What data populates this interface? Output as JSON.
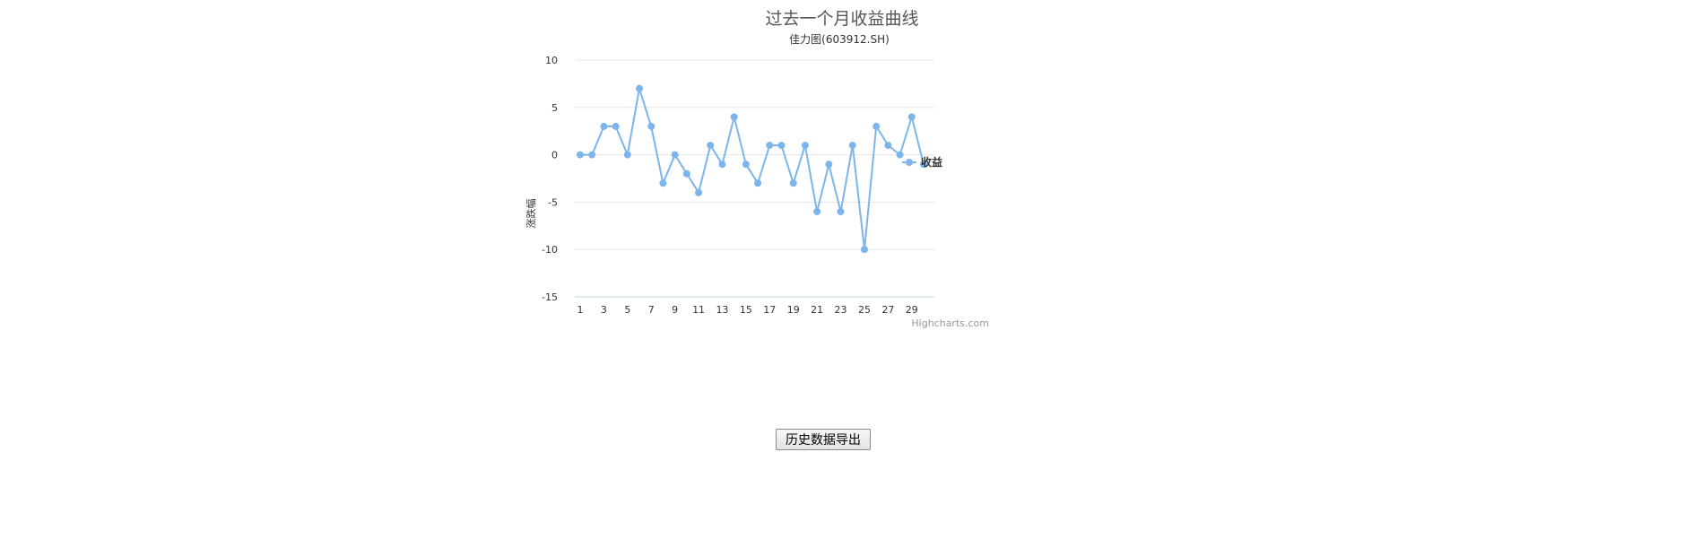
{
  "page": {
    "heading": "过去一个月收益曲线",
    "export_button_label": "历史数据导出"
  },
  "chart_data": {
    "type": "line",
    "title": "",
    "subtitle": "佳力图(603912.SH)",
    "xlabel": "",
    "ylabel": "涨跌幅",
    "x": [
      1,
      2,
      3,
      4,
      5,
      6,
      7,
      8,
      9,
      10,
      11,
      12,
      13,
      14,
      15,
      16,
      17,
      18,
      19,
      20,
      21,
      22,
      23,
      24,
      25,
      26,
      27,
      28,
      29,
      30
    ],
    "x_tick_labels": [
      "1",
      "3",
      "5",
      "7",
      "9",
      "11",
      "13",
      "15",
      "17",
      "19",
      "21",
      "23",
      "25",
      "27",
      "29"
    ],
    "y_tick_labels": [
      "10",
      "5",
      "0",
      "-5",
      "-10",
      "-15"
    ],
    "ylim": [
      -15,
      10
    ],
    "grid": true,
    "legend_position": "right",
    "credits": "Highcharts.com",
    "series": [
      {
        "name": "收益",
        "color": "#7cb5ec",
        "values": [
          0,
          0,
          3,
          3,
          0,
          7,
          3,
          -3,
          0,
          -2,
          -4,
          1,
          -1,
          4,
          -1,
          -3,
          1,
          1,
          -3,
          1,
          -6,
          -1,
          -6,
          1,
          -10,
          3,
          1,
          0,
          4,
          -1
        ]
      }
    ]
  }
}
